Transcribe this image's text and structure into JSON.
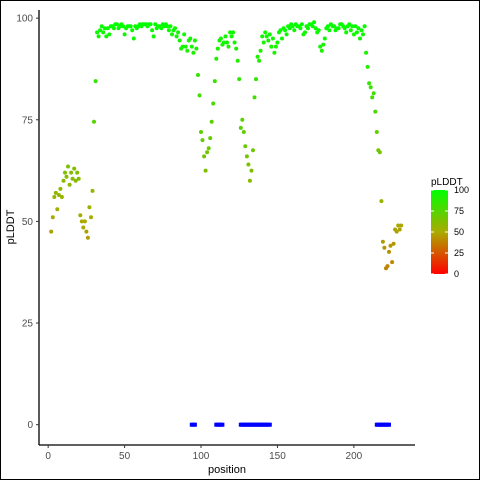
{
  "chart_data": {
    "type": "scatter",
    "xlabel": "position",
    "ylabel": "pLDDT",
    "xlim": [
      -6,
      240
    ],
    "ylim": [
      -5,
      102
    ],
    "x_ticks": [
      "0",
      "50",
      "100",
      "150",
      "200"
    ],
    "y_ticks": [
      "0",
      "25",
      "50",
      "75",
      "100"
    ],
    "grid": false,
    "legend": {
      "title": "pLDDT",
      "position": "right",
      "labels": [
        "100",
        "75",
        "50",
        "25",
        "0"
      ],
      "gradient": [
        "#00ff00",
        "#ff0000"
      ]
    },
    "series": [
      {
        "values_colored_by": "pLDDT",
        "points": [
          [
            2,
            47.5
          ],
          [
            3,
            51
          ],
          [
            4,
            56
          ],
          [
            5,
            57
          ],
          [
            6,
            53
          ],
          [
            7,
            56.5
          ],
          [
            8,
            58
          ],
          [
            9,
            56
          ],
          [
            10,
            60
          ],
          [
            11,
            62
          ],
          [
            12,
            61
          ],
          [
            13,
            63.5
          ],
          [
            14,
            59
          ],
          [
            15,
            62
          ],
          [
            16,
            60.5
          ],
          [
            17,
            63
          ],
          [
            18,
            60
          ],
          [
            19,
            62
          ],
          [
            20,
            60.5
          ],
          [
            21,
            51.5
          ],
          [
            22,
            50
          ],
          [
            23,
            48.5
          ],
          [
            24,
            50
          ],
          [
            25,
            47.5
          ],
          [
            26,
            46
          ],
          [
            27,
            53.5
          ],
          [
            28,
            51
          ],
          [
            29,
            57.5
          ],
          [
            30,
            74.5
          ],
          [
            31,
            84.5
          ],
          [
            32,
            96.5
          ],
          [
            33,
            95.5
          ],
          [
            34,
            97
          ],
          [
            35,
            98
          ],
          [
            36,
            96.5
          ],
          [
            37,
            97.5
          ],
          [
            38,
            95.5
          ],
          [
            39,
            97.5
          ],
          [
            40,
            96
          ],
          [
            41,
            98
          ],
          [
            42,
            98
          ],
          [
            43,
            97.5
          ],
          [
            44,
            98.5
          ],
          [
            45,
            98.5
          ],
          [
            46,
            97.5
          ],
          [
            47,
            98
          ],
          [
            48,
            98.5
          ],
          [
            49,
            98
          ],
          [
            50,
            96
          ],
          [
            51,
            97.5
          ],
          [
            52,
            98
          ],
          [
            53,
            98
          ],
          [
            54,
            98
          ],
          [
            55,
            97
          ],
          [
            56,
            95
          ],
          [
            57,
            98
          ],
          [
            58,
            97.5
          ],
          [
            59,
            98
          ],
          [
            60,
            98.5
          ],
          [
            61,
            98
          ],
          [
            62,
            98.5
          ],
          [
            63,
            98.5
          ],
          [
            64,
            98.5
          ],
          [
            65,
            98
          ],
          [
            66,
            98.5
          ],
          [
            67,
            98.5
          ],
          [
            68,
            97
          ],
          [
            69,
            95.5
          ],
          [
            70,
            98.5
          ],
          [
            71,
            97.5
          ],
          [
            72,
            98
          ],
          [
            73,
            98
          ],
          [
            74,
            97.5
          ],
          [
            75,
            98.5
          ],
          [
            76,
            98
          ],
          [
            77,
            98.5
          ],
          [
            78,
            98
          ],
          [
            79,
            97
          ],
          [
            80,
            98
          ],
          [
            81,
            96
          ],
          [
            82,
            97
          ],
          [
            83,
            97.5
          ],
          [
            84,
            95.5
          ],
          [
            85,
            96.5
          ],
          [
            86,
            94.5
          ],
          [
            87,
            92.5
          ],
          [
            88,
            93
          ],
          [
            89,
            96
          ],
          [
            90,
            93
          ],
          [
            91,
            92
          ],
          [
            92,
            94.5
          ],
          [
            93,
            95
          ],
          [
            94,
            93
          ],
          [
            95,
            91.5
          ],
          [
            96,
            94.5
          ],
          [
            97,
            92.5
          ],
          [
            98,
            86
          ],
          [
            99,
            81
          ],
          [
            100,
            72
          ],
          [
            101,
            70
          ],
          [
            102,
            66
          ],
          [
            103,
            62.5
          ],
          [
            104,
            67
          ],
          [
            105,
            68
          ],
          [
            106,
            70.5
          ],
          [
            107,
            74.5
          ],
          [
            108,
            79
          ],
          [
            109,
            84.5
          ],
          [
            110,
            90
          ],
          [
            111,
            92.5
          ],
          [
            112,
            94.5
          ],
          [
            113,
            95
          ],
          [
            114,
            93.5
          ],
          [
            115,
            94
          ],
          [
            116,
            95.5
          ],
          [
            117,
            94
          ],
          [
            118,
            93
          ],
          [
            119,
            96.5
          ],
          [
            120,
            95.5
          ],
          [
            121,
            96.5
          ],
          [
            122,
            94
          ],
          [
            123,
            92.5
          ],
          [
            124,
            89.5
          ],
          [
            125,
            85
          ],
          [
            126,
            73
          ],
          [
            127,
            75
          ],
          [
            128,
            72
          ],
          [
            129,
            68.5
          ],
          [
            130,
            66
          ],
          [
            131,
            64
          ],
          [
            132,
            60
          ],
          [
            133,
            62.5
          ],
          [
            134,
            67.5
          ],
          [
            135,
            80.5
          ],
          [
            136,
            85
          ],
          [
            137,
            90.5
          ],
          [
            138,
            89.5
          ],
          [
            139,
            92
          ],
          [
            140,
            95.5
          ],
          [
            141,
            94
          ],
          [
            142,
            96.5
          ],
          [
            143,
            95.5
          ],
          [
            144,
            94.5
          ],
          [
            145,
            96
          ],
          [
            146,
            93
          ],
          [
            147,
            95
          ],
          [
            148,
            91.5
          ],
          [
            149,
            93
          ],
          [
            150,
            94
          ],
          [
            151,
            96.5
          ],
          [
            152,
            97
          ],
          [
            153,
            95
          ],
          [
            154,
            97.5
          ],
          [
            155,
            97
          ],
          [
            156,
            96
          ],
          [
            157,
            98
          ],
          [
            158,
            97.5
          ],
          [
            159,
            98.5
          ],
          [
            160,
            98
          ],
          [
            161,
            97
          ],
          [
            162,
            98.5
          ],
          [
            163,
            98
          ],
          [
            164,
            98
          ],
          [
            165,
            97.5
          ],
          [
            166,
            98.5
          ],
          [
            167,
            96
          ],
          [
            168,
            96.5
          ],
          [
            169,
            98
          ],
          [
            170,
            97.5
          ],
          [
            171,
            98.5
          ],
          [
            172,
            98.5
          ],
          [
            173,
            98
          ],
          [
            174,
            99
          ],
          [
            175,
            97.5
          ],
          [
            176,
            96.5
          ],
          [
            177,
            97
          ],
          [
            178,
            93
          ],
          [
            179,
            92
          ],
          [
            180,
            93.5
          ],
          [
            181,
            95
          ],
          [
            182,
            97.5
          ],
          [
            183,
            98
          ],
          [
            184,
            97
          ],
          [
            185,
            98.5
          ],
          [
            186,
            98
          ],
          [
            187,
            98
          ],
          [
            188,
            97
          ],
          [
            189,
            97.5
          ],
          [
            190,
            97.5
          ],
          [
            191,
            98.5
          ],
          [
            192,
            98.5
          ],
          [
            193,
            98
          ],
          [
            194,
            97.5
          ],
          [
            195,
            96.5
          ],
          [
            196,
            98
          ],
          [
            197,
            98.5
          ],
          [
            198,
            97
          ],
          [
            199,
            98
          ],
          [
            200,
            96
          ],
          [
            201,
            98
          ],
          [
            202,
            96.5
          ],
          [
            203,
            97.5
          ],
          [
            204,
            95
          ],
          [
            205,
            97
          ],
          [
            206,
            96
          ],
          [
            207,
            98
          ],
          [
            208,
            91.5
          ],
          [
            209,
            88
          ],
          [
            210,
            84
          ],
          [
            211,
            83
          ],
          [
            212,
            80.5
          ],
          [
            213,
            81.5
          ],
          [
            214,
            77
          ],
          [
            215,
            72
          ],
          [
            216,
            67.5
          ],
          [
            217,
            67
          ],
          [
            218,
            55
          ],
          [
            219,
            45
          ],
          [
            220,
            43.5
          ],
          [
            221,
            38.5
          ],
          [
            222,
            39
          ],
          [
            223,
            42.5
          ],
          [
            224,
            44
          ],
          [
            225,
            40
          ],
          [
            226,
            44.5
          ],
          [
            227,
            48
          ],
          [
            228,
            47.5
          ],
          [
            229,
            49
          ],
          [
            230,
            48
          ],
          [
            231,
            49
          ]
        ]
      },
      {
        "name": "",
        "color": "#0000ff",
        "marker": "square",
        "y": 0,
        "x": [
          94,
          95,
          96,
          110,
          111,
          112,
          113,
          114,
          126,
          127,
          128,
          129,
          130,
          131,
          132,
          133,
          134,
          135,
          136,
          137,
          138,
          139,
          140,
          141,
          142,
          143,
          144,
          145,
          215,
          216,
          217,
          218,
          219,
          220,
          221,
          222,
          223
        ]
      }
    ]
  }
}
